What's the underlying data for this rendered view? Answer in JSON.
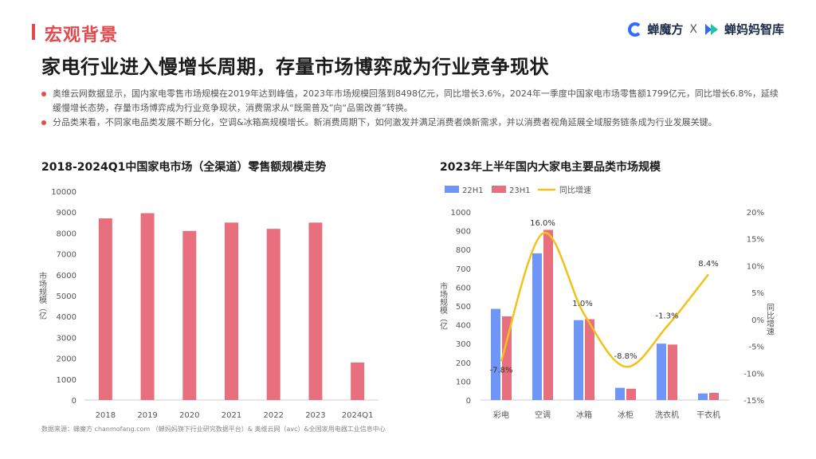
{
  "section": {
    "title": "宏观背景"
  },
  "brand": {
    "left": "蝉魔方",
    "sep": "X",
    "right": "蝉妈妈智库"
  },
  "headline": "家电行业进入慢增长周期，存量市场博弈成为行业竞争现状",
  "bullets": [
    "奥维云网数据显示，国内家电零售市场规模在2019年达到峰值，2023年市场规模回落到8498亿元，同比增长3.6%，2024年一季度中国家电市场零售额1799亿元，同比增长6.8%，延续缓慢增长态势，存量市场博弈成为行业竞争现状，消费需求从“既需普及”向“品需改善”转换。",
    "分品类来看，不同家电品类发展不断分化，空调&冰箱高规模增长。新消费周期下，如何激发并满足消费者焕新需求，并以消费者视角延展全域服务链条成为行业发展关键。"
  ],
  "colors": {
    "accent": "#e5484d",
    "bar_red": "#e8707e",
    "bar_blue": "#6f95f7",
    "line_yellow": "#f2c21a"
  },
  "chart_data": [
    {
      "type": "bar",
      "title": "2018-2024Q1中国家电市场（全渠道）零售额规模走势",
      "ylabel": "市场规模（亿",
      "xlabel": "",
      "categories": [
        "2018",
        "2019",
        "2020",
        "2021",
        "2022",
        "2023",
        "2024Q1"
      ],
      "values": [
        8700,
        8950,
        8100,
        8500,
        8200,
        8498,
        1799
      ],
      "ylim": [
        0,
        10000
      ],
      "yticks": [
        "0",
        "1000",
        "2000",
        "3000",
        "4000",
        "5000",
        "6000",
        "7000",
        "8000",
        "9000",
        "10000"
      ],
      "grid": false
    },
    {
      "type": "bar",
      "title": "2023年上半年国内大家电主要品类市场规模",
      "ylabel": "市场规模（亿",
      "y2label": "同比增速",
      "categories": [
        "彩电",
        "空调",
        "冰箱",
        "冰柜",
        "洗衣机",
        "干衣机"
      ],
      "series": [
        {
          "name": "22H1",
          "values": [
            485,
            780,
            425,
            65,
            300,
            35
          ]
        },
        {
          "name": "23H1",
          "values": [
            445,
            905,
            430,
            60,
            295,
            38
          ]
        },
        {
          "name": "同比增速",
          "type": "line",
          "axis": "right",
          "values": [
            -7.8,
            16.0,
            1.0,
            -8.8,
            -1.3,
            8.4
          ],
          "labels": [
            "-7.8%",
            "16.0%",
            "1.0%",
            "-8.8%",
            "-1.3%",
            "8.4%"
          ]
        }
      ],
      "ylim": [
        0,
        1000
      ],
      "yticks": [
        "0",
        "100",
        "200",
        "300",
        "400",
        "500",
        "600",
        "700",
        "800",
        "900",
        "1000"
      ],
      "y2lim": [
        -15,
        20
      ],
      "y2ticks": [
        "-15%",
        "-10%",
        "-5%",
        "0%",
        "5%",
        "10%",
        "15%",
        "20%"
      ],
      "legend": "top-left",
      "grid": false
    }
  ],
  "source": "数据来源：蝉魔方 chanmofang.com （蝉妈妈旗下行业研究数据平台）& 奥维云网（avc）&全国家用电器工业信息中心"
}
